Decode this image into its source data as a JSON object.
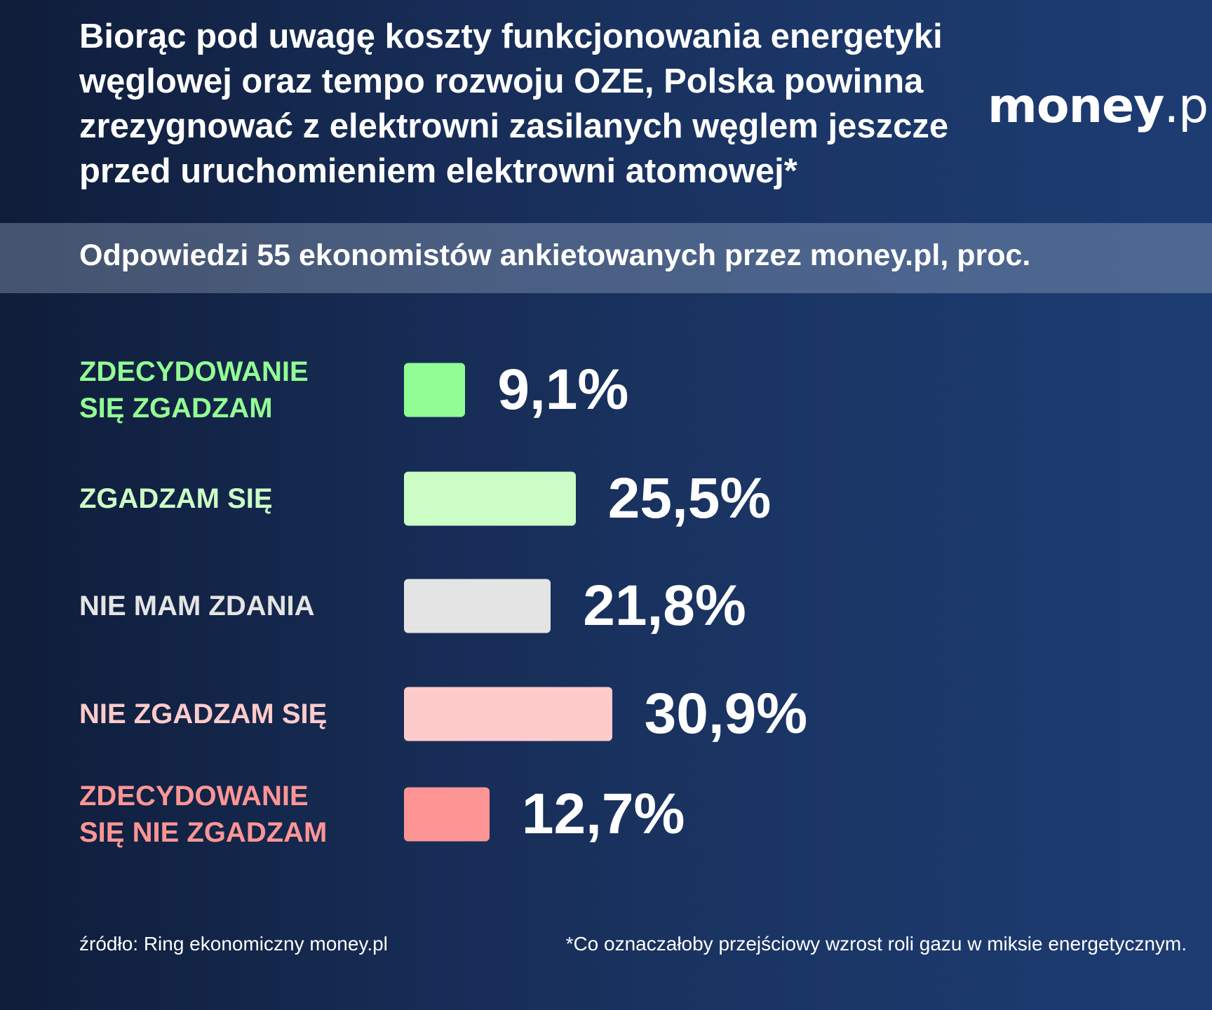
{
  "title": "Biorąc pod uwagę koszty funkcjonowania energetyki węglowej oraz tempo rozwoju OZE, Polska powinna zrezygnować z elektrowni zasilanych węglem jeszcze przed uruchomieniem elektrowni atomowej*",
  "logo": {
    "main": "money",
    "suffix": ".pl"
  },
  "subtitle": "Odpowiedzi 55 ekonomistów ankietowanych przez money.pl, proc.",
  "chart_data": {
    "type": "bar",
    "orientation": "horizontal",
    "categories": [
      "ZDECYDOWANIE SIĘ ZGADZAM",
      "ZGADZAM SIĘ",
      "NIE MAM ZDANIA",
      "NIE ZGADZAM SIĘ",
      "ZDECYDOWANIE SIĘ NIE ZGADZAM"
    ],
    "values": [
      9.1,
      25.5,
      21.8,
      30.9,
      12.7
    ],
    "labels": [
      "9,1%",
      "25,5%",
      "21,8%",
      "30,9%",
      "12,7%"
    ],
    "colors": [
      "#92fd94",
      "#cdfdc6",
      "#e4e4e4",
      "#fecbcb",
      "#fd9595"
    ],
    "label_colors": [
      "#92fd94",
      "#cdfdc6",
      "#e4e4e4",
      "#fecbcb",
      "#fd9595"
    ],
    "grid": false
  },
  "footer": {
    "source": "źródło: Ring ekonomiczny money.pl",
    "note": "*Co oznaczałoby przejściowy wzrost roli gazu w miksie energetycznym."
  }
}
